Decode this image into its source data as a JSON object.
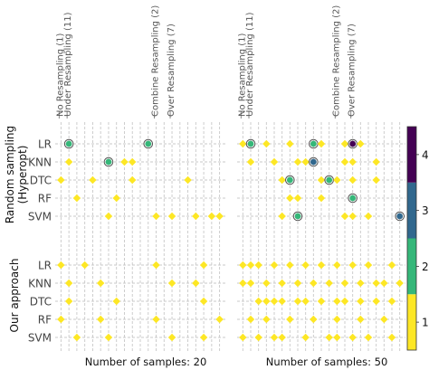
{
  "chart_data": {
    "type": "scatter",
    "colormap": {
      "ticks": [
        1,
        2,
        3,
        4
      ],
      "range": [
        0.5,
        4.5
      ],
      "colors": [
        "#fde725",
        "#35b779",
        "#31688e",
        "#440154"
      ]
    },
    "column_groups": [
      {
        "label": "No Resampling (1)",
        "start": 0,
        "count": 1
      },
      {
        "label": "Under Resampling (11)",
        "start": 1,
        "count": 11
      },
      {
        "label": "Combine Resampling (2)",
        "start": 12,
        "count": 2
      },
      {
        "label": "Over Resampling (7)",
        "start": 14,
        "count": 7
      }
    ],
    "n_columns": 21,
    "rows": [
      "LR",
      "KNN",
      "DTC",
      "RF",
      "SVM"
    ],
    "row_sections": [
      {
        "label": "Random sampling\n(Hyperopt)"
      },
      {
        "label": "Our approach"
      }
    ],
    "panels": [
      {
        "xlabel": "Number of samples: 20",
        "sections": [
          {
            "points": [
              {
                "row": "LR",
                "col": 1,
                "value": 2
              },
              {
                "row": "LR",
                "col": 11,
                "value": 2
              },
              {
                "row": "KNN",
                "col": 1,
                "value": 1
              },
              {
                "row": "KNN",
                "col": 6,
                "value": 2
              },
              {
                "row": "KNN",
                "col": 8,
                "value": 1
              },
              {
                "row": "KNN",
                "col": 9,
                "value": 1
              },
              {
                "row": "DTC",
                "col": 0,
                "value": 1
              },
              {
                "row": "DTC",
                "col": 4,
                "value": 1
              },
              {
                "row": "DTC",
                "col": 9,
                "value": 1
              },
              {
                "row": "DTC",
                "col": 16,
                "value": 1
              },
              {
                "row": "RF",
                "col": 2,
                "value": 1
              },
              {
                "row": "RF",
                "col": 7,
                "value": 1
              },
              {
                "row": "SVM",
                "col": 6,
                "value": 1
              },
              {
                "row": "SVM",
                "col": 12,
                "value": 1
              },
              {
                "row": "SVM",
                "col": 14,
                "value": 1
              },
              {
                "row": "SVM",
                "col": 17,
                "value": 1
              },
              {
                "row": "SVM",
                "col": 19,
                "value": 1
              },
              {
                "row": "SVM",
                "col": 20,
                "value": 1
              }
            ]
          },
          {
            "points": [
              {
                "row": "LR",
                "col": 0,
                "value": 1
              },
              {
                "row": "LR",
                "col": 3,
                "value": 1
              },
              {
                "row": "LR",
                "col": 12,
                "value": 1
              },
              {
                "row": "LR",
                "col": 18,
                "value": 1
              },
              {
                "row": "KNN",
                "col": 1,
                "value": 1
              },
              {
                "row": "KNN",
                "col": 5,
                "value": 1
              },
              {
                "row": "KNN",
                "col": 14,
                "value": 1
              },
              {
                "row": "KNN",
                "col": 17,
                "value": 1
              },
              {
                "row": "DTC",
                "col": 1,
                "value": 1
              },
              {
                "row": "DTC",
                "col": 7,
                "value": 1
              },
              {
                "row": "DTC",
                "col": 18,
                "value": 1
              },
              {
                "row": "RF",
                "col": 0,
                "value": 1
              },
              {
                "row": "RF",
                "col": 5,
                "value": 1
              },
              {
                "row": "RF",
                "col": 12,
                "value": 1
              },
              {
                "row": "RF",
                "col": 20,
                "value": 1
              },
              {
                "row": "SVM",
                "col": 2,
                "value": 1
              },
              {
                "row": "SVM",
                "col": 6,
                "value": 1
              },
              {
                "row": "SVM",
                "col": 14,
                "value": 1
              },
              {
                "row": "SVM",
                "col": 18,
                "value": 1
              }
            ]
          }
        ]
      },
      {
        "xlabel": "Number of samples: 50",
        "sections": [
          {
            "points": [
              {
                "row": "LR",
                "col": 0,
                "value": 1
              },
              {
                "row": "LR",
                "col": 1,
                "value": 2
              },
              {
                "row": "LR",
                "col": 3,
                "value": 1
              },
              {
                "row": "LR",
                "col": 6,
                "value": 1
              },
              {
                "row": "LR",
                "col": 9,
                "value": 2
              },
              {
                "row": "LR",
                "col": 10,
                "value": 1
              },
              {
                "row": "LR",
                "col": 13,
                "value": 1
              },
              {
                "row": "LR",
                "col": 14,
                "value": 4
              },
              {
                "row": "LR",
                "col": 15,
                "value": 1
              },
              {
                "row": "KNN",
                "col": 1,
                "value": 1
              },
              {
                "row": "KNN",
                "col": 4,
                "value": 1
              },
              {
                "row": "KNN",
                "col": 7,
                "value": 1
              },
              {
                "row": "KNN",
                "col": 8,
                "value": 1
              },
              {
                "row": "KNN",
                "col": 9,
                "value": 3
              },
              {
                "row": "KNN",
                "col": 13,
                "value": 1
              },
              {
                "row": "KNN",
                "col": 14,
                "value": 1
              },
              {
                "row": "KNN",
                "col": 17,
                "value": 1
              },
              {
                "row": "DTC",
                "col": 5,
                "value": 1
              },
              {
                "row": "DTC",
                "col": 6,
                "value": 2
              },
              {
                "row": "DTC",
                "col": 10,
                "value": 1
              },
              {
                "row": "DTC",
                "col": 11,
                "value": 2
              },
              {
                "row": "DTC",
                "col": 12,
                "value": 1
              },
              {
                "row": "DTC",
                "col": 14,
                "value": 1
              },
              {
                "row": "DTC",
                "col": 17,
                "value": 1
              },
              {
                "row": "RF",
                "col": 6,
                "value": 1
              },
              {
                "row": "RF",
                "col": 7,
                "value": 1
              },
              {
                "row": "RF",
                "col": 10,
                "value": 1
              },
              {
                "row": "RF",
                "col": 14,
                "value": 2
              },
              {
                "row": "SVM",
                "col": 5,
                "value": 1
              },
              {
                "row": "SVM",
                "col": 7,
                "value": 2
              },
              {
                "row": "SVM",
                "col": 13,
                "value": 1
              },
              {
                "row": "SVM",
                "col": 14,
                "value": 1
              },
              {
                "row": "SVM",
                "col": 16,
                "value": 1
              },
              {
                "row": "SVM",
                "col": 20,
                "value": 3
              }
            ]
          },
          {
            "points": [
              {
                "row": "LR",
                "col": 0,
                "value": 1
              },
              {
                "row": "LR",
                "col": 1,
                "value": 1
              },
              {
                "row": "LR",
                "col": 2,
                "value": 1
              },
              {
                "row": "LR",
                "col": 4,
                "value": 1
              },
              {
                "row": "LR",
                "col": 6,
                "value": 1
              },
              {
                "row": "LR",
                "col": 8,
                "value": 1
              },
              {
                "row": "LR",
                "col": 10,
                "value": 1
              },
              {
                "row": "LR",
                "col": 12,
                "value": 1
              },
              {
                "row": "LR",
                "col": 14,
                "value": 1
              },
              {
                "row": "LR",
                "col": 16,
                "value": 1
              },
              {
                "row": "LR",
                "col": 19,
                "value": 1
              },
              {
                "row": "KNN",
                "col": 0,
                "value": 1
              },
              {
                "row": "KNN",
                "col": 1,
                "value": 1
              },
              {
                "row": "KNN",
                "col": 3,
                "value": 1
              },
              {
                "row": "KNN",
                "col": 5,
                "value": 1
              },
              {
                "row": "KNN",
                "col": 7,
                "value": 1
              },
              {
                "row": "KNN",
                "col": 9,
                "value": 1
              },
              {
                "row": "KNN",
                "col": 11,
                "value": 1
              },
              {
                "row": "KNN",
                "col": 13,
                "value": 1
              },
              {
                "row": "KNN",
                "col": 15,
                "value": 1
              },
              {
                "row": "KNN",
                "col": 17,
                "value": 1
              },
              {
                "row": "KNN",
                "col": 18,
                "value": 1
              },
              {
                "row": "KNN",
                "col": 20,
                "value": 1
              },
              {
                "row": "DTC",
                "col": 2,
                "value": 1
              },
              {
                "row": "DTC",
                "col": 3,
                "value": 1
              },
              {
                "row": "DTC",
                "col": 4,
                "value": 1
              },
              {
                "row": "DTC",
                "col": 5,
                "value": 1
              },
              {
                "row": "DTC",
                "col": 7,
                "value": 1
              },
              {
                "row": "DTC",
                "col": 8,
                "value": 1
              },
              {
                "row": "DTC",
                "col": 10,
                "value": 1
              },
              {
                "row": "DTC",
                "col": 12,
                "value": 1
              },
              {
                "row": "DTC",
                "col": 13,
                "value": 1
              },
              {
                "row": "DTC",
                "col": 15,
                "value": 1
              },
              {
                "row": "DTC",
                "col": 17,
                "value": 1
              },
              {
                "row": "DTC",
                "col": 19,
                "value": 1
              },
              {
                "row": "RF",
                "col": 1,
                "value": 1
              },
              {
                "row": "RF",
                "col": 3,
                "value": 1
              },
              {
                "row": "RF",
                "col": 6,
                "value": 1
              },
              {
                "row": "RF",
                "col": 9,
                "value": 1
              },
              {
                "row": "RF",
                "col": 12,
                "value": 1
              },
              {
                "row": "RF",
                "col": 15,
                "value": 1
              },
              {
                "row": "RF",
                "col": 18,
                "value": 1
              },
              {
                "row": "SVM",
                "col": 0,
                "value": 1
              },
              {
                "row": "SVM",
                "col": 2,
                "value": 1
              },
              {
                "row": "SVM",
                "col": 4,
                "value": 1
              },
              {
                "row": "SVM",
                "col": 5,
                "value": 1
              },
              {
                "row": "SVM",
                "col": 8,
                "value": 1
              },
              {
                "row": "SVM",
                "col": 11,
                "value": 1
              },
              {
                "row": "SVM",
                "col": 12,
                "value": 1
              },
              {
                "row": "SVM",
                "col": 14,
                "value": 1
              },
              {
                "row": "SVM",
                "col": 16,
                "value": 1
              },
              {
                "row": "SVM",
                "col": 19,
                "value": 1
              }
            ]
          }
        ]
      }
    ]
  }
}
